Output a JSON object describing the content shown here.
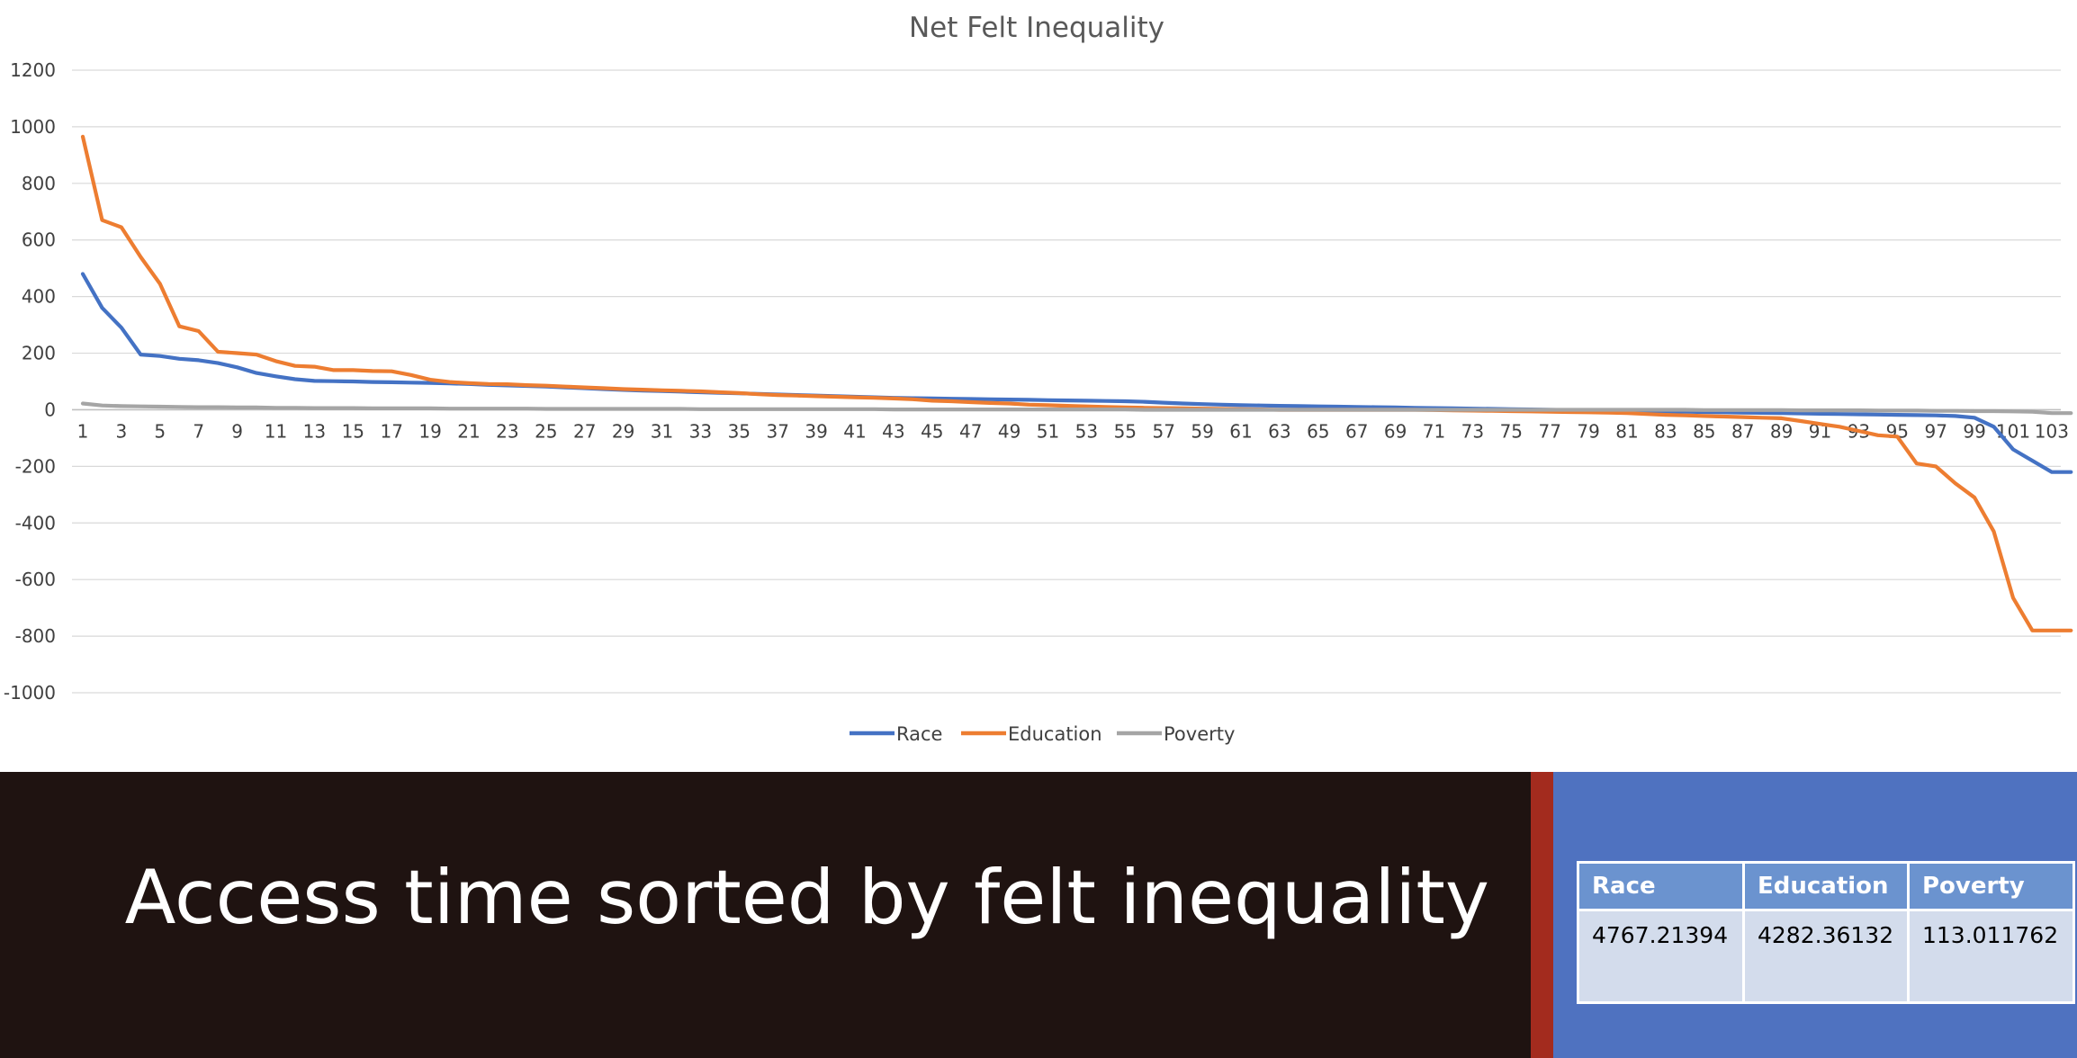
{
  "chart_data": {
    "type": "line",
    "title": "Net Felt Inequality",
    "xlabel": "",
    "ylabel": "",
    "ylim": [
      -1000,
      1200
    ],
    "y_ticks": [
      1200,
      1000,
      800,
      600,
      400,
      200,
      0,
      -200,
      -400,
      -600,
      -800,
      -1000
    ],
    "x_ticks": [
      1,
      3,
      5,
      7,
      9,
      11,
      13,
      15,
      17,
      19,
      21,
      23,
      25,
      27,
      29,
      31,
      33,
      35,
      37,
      39,
      41,
      43,
      45,
      47,
      49,
      51,
      53,
      55,
      57,
      59,
      61,
      63,
      65,
      67,
      69,
      71,
      73,
      75,
      77,
      79,
      81,
      83,
      85,
      87,
      89,
      91,
      93,
      95,
      97,
      99,
      101,
      103
    ],
    "x": [
      1,
      2,
      3,
      4,
      5,
      6,
      7,
      8,
      9,
      10,
      11,
      12,
      13,
      14,
      15,
      16,
      17,
      18,
      19,
      20,
      21,
      22,
      23,
      24,
      25,
      26,
      27,
      28,
      29,
      30,
      31,
      32,
      33,
      34,
      35,
      36,
      37,
      38,
      39,
      40,
      41,
      42,
      43,
      44,
      45,
      46,
      47,
      48,
      49,
      50,
      51,
      52,
      53,
      54,
      55,
      56,
      57,
      58,
      59,
      60,
      61,
      62,
      63,
      64,
      65,
      66,
      67,
      68,
      69,
      70,
      71,
      72,
      73,
      74,
      75,
      76,
      77,
      78,
      79,
      80,
      81,
      82,
      83,
      84,
      85,
      86,
      87,
      88,
      89,
      90,
      91,
      92,
      93,
      94,
      95,
      96,
      97,
      98,
      99,
      100,
      101,
      102,
      103,
      104
    ],
    "grid": true,
    "legend": "bottom",
    "series": [
      {
        "name": "Race",
        "color": "#4472c4",
        "values": [
          480,
          360,
          290,
          195,
          190,
          180,
          175,
          165,
          150,
          130,
          118,
          108,
          102,
          101,
          100,
          98,
          97,
          96,
          95,
          93,
          91,
          88,
          86,
          84,
          82,
          79,
          76,
          73,
          70,
          68,
          66,
          64,
          62,
          60,
          58,
          56,
          54,
          52,
          50,
          48,
          46,
          44,
          42,
          41,
          40,
          39,
          38,
          37,
          36,
          35,
          34,
          33,
          32,
          31,
          30,
          28,
          25,
          22,
          20,
          18,
          16,
          15,
          14,
          13,
          12,
          11,
          10,
          9,
          8,
          7,
          6,
          5,
          4,
          3,
          2,
          1,
          0,
          -1,
          -2,
          -3,
          -4,
          -5,
          -6,
          -7,
          -8,
          -9,
          -10,
          -11,
          -12,
          -13,
          -14,
          -15,
          -16,
          -17,
          -18,
          -19,
          -20,
          -22,
          -28,
          -60,
          -140,
          -180,
          -220,
          -220
        ]
      },
      {
        "name": "Education",
        "color": "#ed7d31",
        "values": [
          965,
          670,
          645,
          540,
          445,
          295,
          278,
          205,
          200,
          195,
          172,
          155,
          152,
          140,
          140,
          137,
          136,
          123,
          106,
          98,
          94,
          91,
          90,
          87,
          85,
          82,
          79,
          76,
          73,
          71,
          69,
          67,
          65,
          62,
          59,
          55,
          52,
          50,
          48,
          46,
          44,
          42,
          40,
          37,
          32,
          30,
          27,
          24,
          22,
          18,
          16,
          14,
          12,
          10,
          8,
          7,
          6,
          5,
          4,
          3,
          2,
          1,
          0,
          0,
          0,
          0,
          0,
          0,
          0,
          0,
          -1,
          -2,
          -3,
          -4,
          -5,
          -6,
          -7,
          -8,
          -9,
          -10,
          -12,
          -15,
          -18,
          -20,
          -22,
          -24,
          -26,
          -28,
          -30,
          -40,
          -50,
          -60,
          -75,
          -90,
          -95,
          -190,
          -200,
          -260,
          -310,
          -430,
          -665,
          -780,
          -780,
          -780
        ]
      },
      {
        "name": "Poverty",
        "color": "#a5a5a5",
        "values": [
          22,
          15,
          13,
          12,
          11,
          10,
          9,
          9,
          8,
          8,
          7,
          7,
          6,
          6,
          6,
          5,
          5,
          5,
          5,
          4,
          4,
          4,
          4,
          4,
          3,
          3,
          3,
          3,
          3,
          3,
          3,
          3,
          2,
          2,
          2,
          2,
          2,
          2,
          2,
          2,
          2,
          2,
          1,
          1,
          1,
          1,
          1,
          1,
          1,
          1,
          1,
          1,
          1,
          1,
          1,
          0,
          0,
          0,
          0,
          0,
          0,
          0,
          0,
          0,
          0,
          0,
          0,
          0,
          0,
          0,
          0,
          0,
          0,
          0,
          0,
          0,
          0,
          0,
          0,
          0,
          0,
          0,
          0,
          0,
          -1,
          -1,
          -1,
          -1,
          -1,
          -2,
          -2,
          -2,
          -2,
          -3,
          -3,
          -3,
          -4,
          -4,
          -5,
          -5,
          -6,
          -7,
          -12,
          -12
        ]
      }
    ]
  },
  "slide": {
    "title": "Access time sorted by felt inequality"
  },
  "summary_table": {
    "headers": [
      "Race",
      "Education",
      "Poverty"
    ],
    "values": [
      "4767.21394",
      "4282.36132",
      "113.011762"
    ]
  }
}
